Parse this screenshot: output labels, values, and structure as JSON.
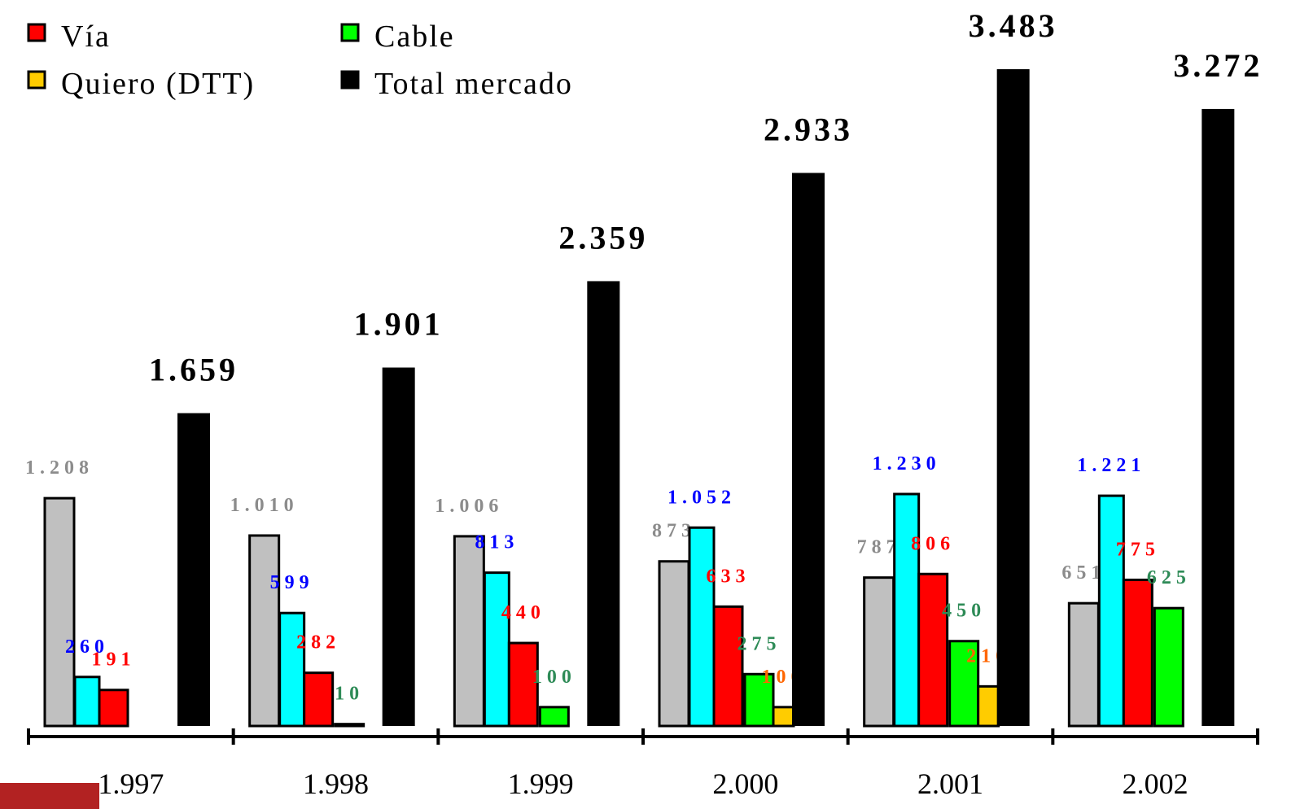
{
  "chart_data": {
    "type": "bar",
    "categories": [
      "1.997",
      "1.998",
      "1.999",
      "2.000",
      "2.001",
      "2.002"
    ],
    "series": [
      {
        "color": "#c0c0c0",
        "label_color": "#8c8c8c",
        "values": [
          1208,
          1010,
          1006,
          873,
          787,
          651
        ],
        "value_labels": [
          "1.208",
          "1.010",
          "1.006",
          "873",
          "787",
          "651"
        ]
      },
      {
        "color": "#00ffff",
        "label_color": "#0000ff",
        "values": [
          260,
          599,
          813,
          1052,
          1230,
          1221
        ],
        "value_labels": [
          "260",
          "599",
          "813",
          "1.052",
          "1.230",
          "1.221"
        ]
      },
      {
        "name": "Vía",
        "color": "#ff0000",
        "label_color": "#ff0000",
        "values": [
          191,
          282,
          440,
          633,
          806,
          775
        ]
      },
      {
        "name": "Cable",
        "color": "#00ff00",
        "label_color": "#2e8b57",
        "values": [
          null,
          10,
          100,
          275,
          450,
          625
        ]
      },
      {
        "name": "Quiero (DTT)",
        "color": "#ffcc00",
        "label_color": "#ff6600",
        "values": [
          null,
          null,
          null,
          100,
          210,
          null
        ]
      },
      {
        "name": "Total mercado",
        "color": "#000000",
        "label_color": "#000000",
        "values": [
          1659,
          1901,
          2359,
          2933,
          3483,
          3272
        ],
        "value_labels": [
          "1.659",
          "1.901",
          "2.359",
          "2.933",
          "3.483",
          "3.272"
        ]
      }
    ],
    "ylim": [
      0,
      3850
    ],
    "legend": "top-left"
  }
}
